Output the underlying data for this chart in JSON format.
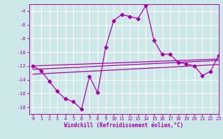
{
  "xlabel": "Windchill (Refroidissement éolien,°C)",
  "bg_color": "#cde8e8",
  "grid_color": "#ffffff",
  "line_color": "#aa00aa",
  "x_hours": [
    0,
    1,
    2,
    3,
    4,
    5,
    6,
    7,
    8,
    9,
    10,
    11,
    12,
    13,
    14,
    15,
    16,
    17,
    18,
    19,
    20,
    21,
    22,
    23
  ],
  "main_line": [
    -12,
    -12.7,
    -14.2,
    -15.7,
    -16.8,
    -17.2,
    -18.3,
    -13.5,
    -15.9,
    -9.3,
    -5.4,
    -4.5,
    -4.8,
    -5.1,
    -3.2,
    -8.3,
    -10.3,
    -10.3,
    -11.5,
    -11.7,
    -12.0,
    -13.4,
    -12.8,
    -10.5
  ],
  "ref_lines": [
    [
      -12.0,
      -11.0
    ],
    [
      -12.5,
      -11.2
    ],
    [
      -13.2,
      -11.8
    ]
  ],
  "ylim": [
    -19,
    -3
  ],
  "xlim": [
    -0.5,
    23
  ],
  "yticks": [
    -18,
    -16,
    -14,
    -12,
    -10,
    -8,
    -6,
    -4
  ],
  "xticks": [
    0,
    1,
    2,
    3,
    4,
    5,
    6,
    7,
    8,
    9,
    10,
    11,
    12,
    13,
    14,
    15,
    16,
    17,
    18,
    19,
    20,
    21,
    22,
    23
  ],
  "tick_fontsize": 5.0,
  "xlabel_fontsize": 5.5
}
